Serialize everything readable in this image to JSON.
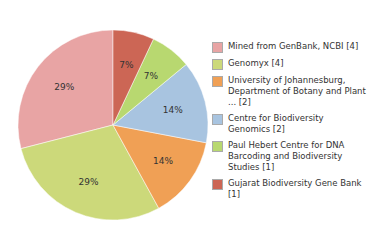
{
  "chart_data": {
    "type": "pie",
    "categories": [
      "Mined from GenBank, NCBI [4]",
      "Genomyx [4]",
      "University of Johannesburg,\nDepartment of Botany and Plant\n... [2]",
      "Centre for Biodiversity\nGenomics [2]",
      "Paul Hebert Centre for DNA\nBarcoding and Biodiversity\nStudies [1]",
      "Gujarat Biodiversity Gene Bank [1]"
    ],
    "values": [
      29,
      29,
      14,
      14,
      7,
      7
    ],
    "value_labels": [
      "29%",
      "29%",
      "14%",
      "14%",
      "7%",
      "7%"
    ],
    "colors": [
      "#e8a4a4",
      "#ccd97a",
      "#f0a055",
      "#a8c4e0",
      "#b8d870",
      "#cc6655"
    ],
    "data_labels": true,
    "legend": "right"
  }
}
